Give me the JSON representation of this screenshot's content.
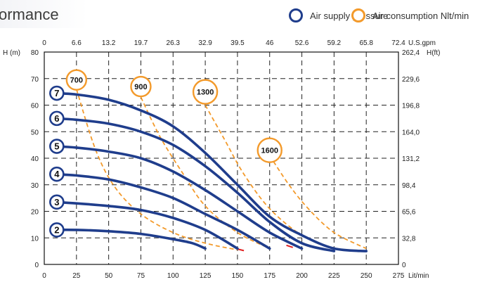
{
  "header": {
    "title": "ormance",
    "legend": [
      {
        "label": "Air supply pressure",
        "color": "#1f3d8c"
      },
      {
        "label": "Air consumption Nlt/min",
        "color": "#f39a2b"
      }
    ]
  },
  "chart_data": {
    "type": "line",
    "x_bottom": {
      "ticks": [
        "0",
        "25",
        "50",
        "75",
        "100",
        "125",
        "150",
        "175",
        "200",
        "225",
        "250",
        "275"
      ],
      "unit": "Lit/min",
      "range": [
        0,
        275
      ]
    },
    "x_top": {
      "ticks": [
        "0",
        "6.6",
        "13.2",
        "19.7",
        "26.3",
        "32.9",
        "39.5",
        "46",
        "52.6",
        "59.2",
        "65.8",
        "72.4"
      ],
      "unit": "U.S.gpm"
    },
    "y_left": {
      "ticks": [
        "0",
        "10",
        "20",
        "30",
        "40",
        "50",
        "60",
        "70",
        "80"
      ],
      "label": "H (m)",
      "range": [
        0,
        80
      ]
    },
    "y_right": {
      "ticks": [
        "0",
        "32,8",
        "65,6",
        "98,4",
        "131,2",
        "164,0",
        "196,8",
        "229,6",
        "262,4"
      ],
      "unit": "H(ft)"
    },
    "grid": true,
    "pressure_series": [
      {
        "name": "7",
        "points": [
          [
            7,
            64.5
          ],
          [
            25,
            64
          ],
          [
            50,
            62
          ],
          [
            75,
            58
          ],
          [
            100,
            52
          ],
          [
            125,
            42
          ],
          [
            150,
            30
          ],
          [
            175,
            18
          ],
          [
            200,
            11
          ],
          [
            225,
            6
          ],
          [
            250,
            5
          ]
        ]
      },
      {
        "name": "6",
        "points": [
          [
            7,
            55
          ],
          [
            25,
            54.5
          ],
          [
            50,
            53
          ],
          [
            75,
            50
          ],
          [
            100,
            45
          ],
          [
            125,
            37
          ],
          [
            150,
            27
          ],
          [
            175,
            16
          ],
          [
            200,
            8
          ],
          [
            225,
            5
          ]
        ]
      },
      {
        "name": "5",
        "points": [
          [
            7,
            44.5
          ],
          [
            25,
            44
          ],
          [
            50,
            42.5
          ],
          [
            75,
            40
          ],
          [
            100,
            35
          ],
          [
            125,
            28
          ],
          [
            150,
            20
          ],
          [
            175,
            12
          ],
          [
            200,
            6
          ]
        ]
      },
      {
        "name": "4",
        "points": [
          [
            7,
            34
          ],
          [
            25,
            33.5
          ],
          [
            50,
            32
          ],
          [
            75,
            29
          ],
          [
            100,
            25
          ],
          [
            125,
            19
          ],
          [
            150,
            13
          ],
          [
            175,
            6
          ]
        ]
      },
      {
        "name": "3",
        "points": [
          [
            7,
            23.5
          ],
          [
            25,
            23
          ],
          [
            50,
            22
          ],
          [
            75,
            20.5
          ],
          [
            100,
            17.5
          ],
          [
            125,
            13
          ],
          [
            150,
            6
          ]
        ]
      },
      {
        "name": "2",
        "points": [
          [
            7,
            13
          ],
          [
            25,
            13
          ],
          [
            50,
            12.5
          ],
          [
            75,
            11.5
          ],
          [
            100,
            9.5
          ],
          [
            115,
            8
          ],
          [
            125,
            6
          ]
        ]
      }
    ],
    "consumption_series": [
      {
        "name": "700",
        "points": [
          [
            25,
            66
          ],
          [
            40,
            43
          ],
          [
            55,
            29
          ],
          [
            75,
            19
          ],
          [
            100,
            12
          ],
          [
            125,
            8
          ],
          [
            150,
            5.5
          ]
        ]
      },
      {
        "name": "900",
        "points": [
          [
            75,
            63
          ],
          [
            90,
            48
          ],
          [
            108,
            34
          ],
          [
            125,
            22
          ],
          [
            150,
            12
          ],
          [
            175,
            6
          ]
        ]
      },
      {
        "name": "1300",
        "points": [
          [
            125,
            60
          ],
          [
            140,
            47
          ],
          [
            155,
            34
          ],
          [
            175,
            21
          ],
          [
            200,
            11
          ],
          [
            225,
            6
          ]
        ]
      },
      {
        "name": "1600",
        "points": [
          [
            175,
            41
          ],
          [
            190,
            30
          ],
          [
            205,
            21
          ],
          [
            225,
            12
          ],
          [
            250,
            6
          ]
        ]
      }
    ],
    "consumption_label_points": [
      [
        25,
        69.5
      ],
      [
        75,
        67
      ],
      [
        125,
        65
      ],
      [
        175,
        43
      ]
    ],
    "red_dashes": [
      [
        [
          150,
          5.8
        ],
        [
          155,
          5.2
        ]
      ],
      [
        [
          188,
          7.2
        ],
        [
          193,
          6.4
        ]
      ]
    ]
  }
}
